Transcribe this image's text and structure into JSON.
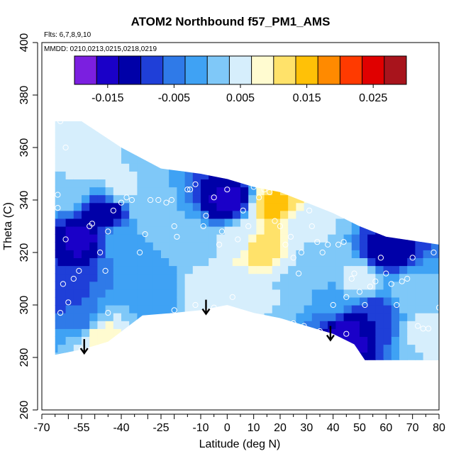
{
  "chart_data": {
    "type": "heatmap",
    "title": "ATOM2 Northbound f57_PM1_AMS",
    "annotations": [
      "Flts: 6,7,8,9,10",
      "MMDD: 0210,0213,0215,0218,0219"
    ],
    "xlabel": "Latitude (deg N)",
    "ylabel": "Theta (C)",
    "xlim": [
      -70,
      80
    ],
    "ylim": [
      260,
      400
    ],
    "x_ticks": [
      "-70",
      "-55",
      "-40",
      "-25",
      "-10",
      "0",
      "10",
      "20",
      "30",
      "40",
      "50",
      "60",
      "70",
      "80"
    ],
    "y_ticks": [
      "260",
      "280",
      "300",
      "320",
      "340",
      "360",
      "380",
      "400"
    ],
    "colorbar": {
      "range": [
        -0.02,
        0.03
      ],
      "tick_values": [
        -0.015,
        -0.005,
        0.005,
        0.015,
        0.025
      ],
      "tick_labels": [
        "-0.015",
        "-0.005",
        "0.005",
        "0.015",
        "0.025"
      ],
      "colors": [
        "#7b1fe0",
        "#1a00c8",
        "#0000a8",
        "#1f3fd8",
        "#2f7ae8",
        "#3fa2f4",
        "#7fc8f8",
        "#d6eefc",
        "#fffbd0",
        "#ffe26a",
        "#ffc107",
        "#ff8a00",
        "#ff3a00",
        "#e00000",
        "#a8141c"
      ]
    },
    "domain_top": [
      [
        -65,
        370
      ],
      [
        -55,
        370
      ],
      [
        -40,
        360
      ],
      [
        -25,
        352
      ],
      [
        -10,
        350
      ],
      [
        0,
        348
      ],
      [
        10,
        345
      ],
      [
        20,
        343
      ],
      [
        40,
        335
      ],
      [
        50,
        330
      ],
      [
        60,
        326
      ],
      [
        80,
        323
      ]
    ],
    "domain_bottom": [
      [
        -65,
        281
      ],
      [
        -55,
        283
      ],
      [
        -45,
        286
      ],
      [
        -32,
        296
      ],
      [
        -20,
        297
      ],
      [
        -10,
        298
      ],
      [
        0,
        300
      ],
      [
        10,
        297
      ],
      [
        20,
        295
      ],
      [
        30,
        292
      ],
      [
        40,
        289
      ],
      [
        48,
        285
      ],
      [
        52,
        279
      ],
      [
        80,
        279
      ]
    ],
    "field_points": [
      {
        "lon": -62,
        "theta": 345,
        "value": 0.003
      },
      {
        "lon": -55,
        "theta": 355,
        "value": 0.006
      },
      {
        "lon": -40,
        "theta": 345,
        "value": 0.004
      },
      {
        "lon": -45,
        "theta": 335,
        "value": -0.012
      },
      {
        "lon": -55,
        "theta": 325,
        "value": -0.014
      },
      {
        "lon": -40,
        "theta": 325,
        "value": 0.0
      },
      {
        "lon": -30,
        "theta": 335,
        "value": 0.002
      },
      {
        "lon": -15,
        "theta": 325,
        "value": 0.001
      },
      {
        "lon": 0,
        "theta": 340,
        "value": -0.014
      },
      {
        "lon": 5,
        "theta": 325,
        "value": 0.004
      },
      {
        "lon": 12,
        "theta": 322,
        "value": 0.013
      },
      {
        "lon": 18,
        "theta": 338,
        "value": 0.014
      },
      {
        "lon": 30,
        "theta": 330,
        "value": 0.005
      },
      {
        "lon": 25,
        "theta": 308,
        "value": 0.003
      },
      {
        "lon": 40,
        "theta": 300,
        "value": -0.002
      },
      {
        "lon": 45,
        "theta": 290,
        "value": -0.016
      },
      {
        "lon": 55,
        "theta": 295,
        "value": -0.01
      },
      {
        "lon": 60,
        "theta": 320,
        "value": -0.013
      },
      {
        "lon": 70,
        "theta": 305,
        "value": 0.002
      },
      {
        "lon": 75,
        "theta": 290,
        "value": 0.004
      },
      {
        "lon": -10,
        "theta": 305,
        "value": 0.006
      },
      {
        "lon": -25,
        "theta": 305,
        "value": -0.003
      },
      {
        "lon": -55,
        "theta": 295,
        "value": -0.004
      },
      {
        "lon": -48,
        "theta": 288,
        "value": 0.008
      },
      {
        "lon": -62,
        "theta": 305,
        "value": -0.009
      },
      {
        "lon": 10,
        "theta": 305,
        "value": 0.004
      },
      {
        "lon": 50,
        "theta": 310,
        "value": 0.005
      },
      {
        "lon": 35,
        "theta": 318,
        "value": 0.002
      }
    ],
    "sample_points": [
      [
        -63,
        370
      ],
      [
        -61,
        360
      ],
      [
        -64,
        342
      ],
      [
        -64,
        337
      ],
      [
        -61,
        325
      ],
      [
        -62,
        308
      ],
      [
        -60,
        301
      ],
      [
        -63,
        297
      ],
      [
        -58,
        310
      ],
      [
        -56,
        313
      ],
      [
        -55,
        283
      ],
      [
        -51,
        331
      ],
      [
        -52,
        330
      ],
      [
        -48,
        320
      ],
      [
        -46,
        313
      ],
      [
        -45,
        328
      ],
      [
        -43,
        336
      ],
      [
        -40,
        339
      ],
      [
        -38,
        341
      ],
      [
        -36,
        340
      ],
      [
        -33,
        320
      ],
      [
        -31,
        327
      ],
      [
        -29,
        340
      ],
      [
        -26,
        340
      ],
      [
        -23,
        339
      ],
      [
        -21,
        340
      ],
      [
        -20,
        330
      ],
      [
        -19,
        326
      ],
      [
        -15,
        344
      ],
      [
        -14,
        344
      ],
      [
        -12,
        346
      ],
      [
        -9,
        330
      ],
      [
        -8,
        334
      ],
      [
        -5,
        341
      ],
      [
        -3,
        323
      ],
      [
        -2,
        328
      ],
      [
        0,
        344
      ],
      [
        2,
        303
      ],
      [
        4,
        325
      ],
      [
        6,
        336
      ],
      [
        8,
        330
      ],
      [
        10,
        345
      ],
      [
        12,
        341
      ],
      [
        14,
        344
      ],
      [
        16,
        343
      ],
      [
        18,
        332
      ],
      [
        20,
        330
      ],
      [
        22,
        323
      ],
      [
        24,
        326
      ],
      [
        25,
        318
      ],
      [
        27,
        312
      ],
      [
        28,
        320
      ],
      [
        29,
        292
      ],
      [
        31,
        336
      ],
      [
        32,
        330
      ],
      [
        34,
        324
      ],
      [
        36,
        320
      ],
      [
        38,
        323
      ],
      [
        40,
        300
      ],
      [
        42,
        323
      ],
      [
        44,
        324
      ],
      [
        45,
        303
      ],
      [
        47,
        310
      ],
      [
        48,
        312
      ],
      [
        50,
        305
      ],
      [
        52,
        300
      ],
      [
        54,
        307
      ],
      [
        56,
        309
      ],
      [
        58,
        318
      ],
      [
        60,
        312
      ],
      [
        62,
        308
      ],
      [
        64,
        300
      ],
      [
        66,
        309
      ],
      [
        68,
        310
      ],
      [
        70,
        318
      ],
      [
        72,
        292
      ],
      [
        74,
        291
      ],
      [
        76,
        291
      ],
      [
        78,
        320
      ],
      [
        80,
        299
      ],
      [
        -45,
        297
      ],
      [
        -32,
        293
      ],
      [
        -20,
        298
      ],
      [
        -12,
        300
      ],
      [
        -5,
        299
      ],
      [
        5,
        295
      ],
      [
        15,
        294
      ],
      [
        25,
        293
      ],
      [
        35,
        290
      ],
      [
        45,
        289
      ]
    ],
    "arrows": [
      [
        -54,
        287
      ],
      [
        -8,
        302
      ],
      [
        39,
        292
      ]
    ]
  }
}
